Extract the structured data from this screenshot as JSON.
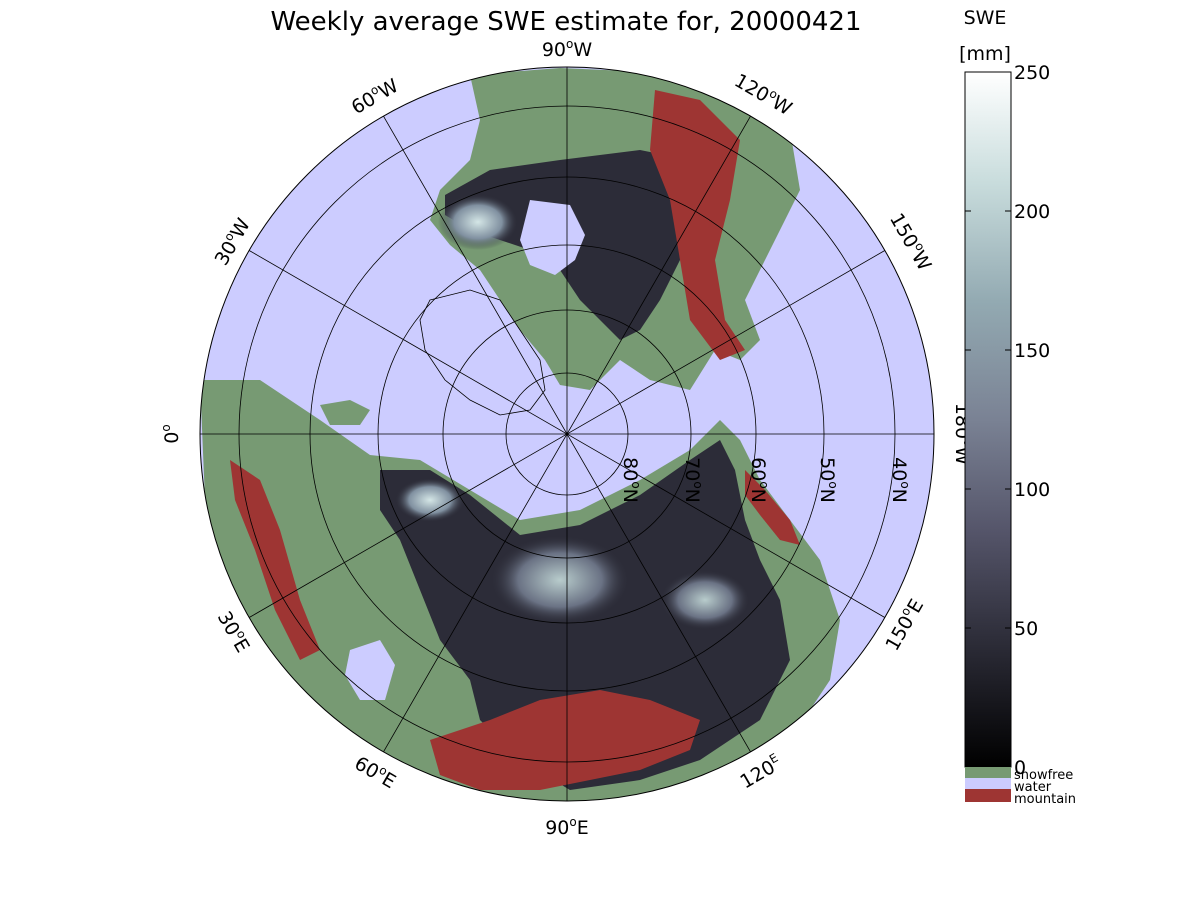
{
  "title": "Weekly average SWE estimate for, 20000421",
  "colorbar": {
    "label_line1": "SWE",
    "label_line2": "[mm]",
    "ticks": [
      0,
      50,
      100,
      150,
      200,
      250
    ],
    "range": [
      0,
      250
    ],
    "gradient_stops": [
      "#000000",
      "#2a2a35",
      "#55556a",
      "#7a8294",
      "#93aab2",
      "#c8dcdc",
      "#ffffff"
    ],
    "categories": [
      {
        "label": "snowfree",
        "color": "#779a73"
      },
      {
        "label": "water",
        "color": "#ccccff"
      },
      {
        "label": "mountain",
        "color": "#9e3533"
      }
    ]
  },
  "map": {
    "projection": "north-polar-stereographic",
    "ocean_color": "#ccccff",
    "land_color": "#779a73",
    "mountain_color": "#9e3533",
    "longitude_labels": [
      {
        "text": "90°W",
        "base": "90",
        "sup": "o",
        "suffix": "W",
        "lon": "90W"
      },
      {
        "text": "120°W",
        "base": "120",
        "sup": "o",
        "suffix": "W",
        "lon": "120W"
      },
      {
        "text": "150°W",
        "base": "150",
        "sup": "o",
        "suffix": "W",
        "lon": "150W"
      },
      {
        "text": "180°W",
        "base": "180",
        "sup": "o",
        "suffix": "W",
        "lon": "180W"
      },
      {
        "text": "150°E",
        "base": "150",
        "sup": "o",
        "suffix": "E",
        "lon": "150E"
      },
      {
        "text": "120°E",
        "base": "120",
        "sup": "o",
        "suffix": "E",
        "lon": "120E"
      },
      {
        "text": "90°E",
        "base": "90",
        "sup": "o",
        "suffix": "E",
        "lon": "90E"
      },
      {
        "text": "60°E",
        "base": "60",
        "sup": "o",
        "suffix": "E",
        "lon": "60E"
      },
      {
        "text": "30°E",
        "base": "30",
        "sup": "o",
        "suffix": "E",
        "lon": "30E"
      },
      {
        "text": "0°",
        "base": "0",
        "sup": "o",
        "suffix": "",
        "lon": "0"
      },
      {
        "text": "30°W",
        "base": "30",
        "sup": "o",
        "suffix": "W",
        "lon": "30W"
      },
      {
        "text": "60°W",
        "base": "60",
        "sup": "o",
        "suffix": "W",
        "lon": "60W"
      }
    ],
    "latitude_labels": [
      {
        "text": "80°N",
        "base": "80",
        "sup": "o",
        "suffix": "N",
        "lat": 80
      },
      {
        "text": "70°N",
        "base": "70",
        "sup": "o",
        "suffix": "N",
        "lat": 70
      },
      {
        "text": "60°N",
        "base": "60",
        "sup": "o",
        "suffix": "N",
        "lat": 60
      },
      {
        "text": "50°N",
        "base": "50",
        "sup": "o",
        "suffix": "N",
        "lat": 50
      },
      {
        "text": "40°N",
        "base": "40",
        "sup": "o",
        "suffix": "N",
        "lat": 40
      }
    ]
  }
}
